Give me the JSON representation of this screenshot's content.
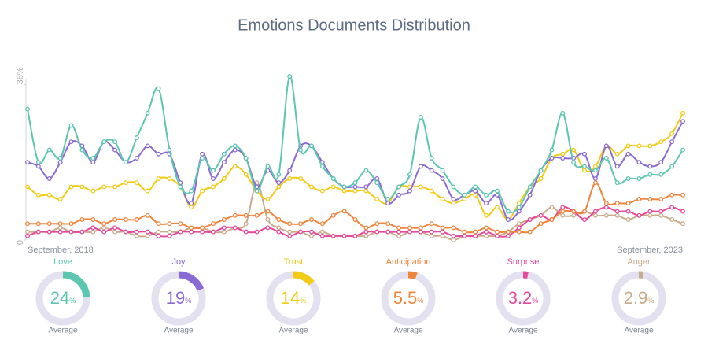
{
  "chart_data": {
    "type": "line",
    "title": "Emotions Documents Distribution",
    "categories": [
      "September, 2018",
      null,
      null,
      null,
      null,
      null,
      null,
      null,
      null,
      null,
      null,
      null,
      null,
      null,
      null,
      null,
      null,
      null,
      null,
      null,
      null,
      null,
      null,
      null,
      null,
      null,
      null,
      null,
      null,
      null,
      null,
      null,
      null,
      null,
      null,
      null,
      null,
      null,
      null,
      null,
      null,
      null,
      null,
      null,
      null,
      null,
      null,
      null,
      null,
      null,
      null,
      null,
      null,
      null,
      null,
      null,
      null,
      null,
      null,
      null,
      "September, 2023"
    ],
    "ylim": [
      0,
      40
    ],
    "yticks": [
      0,
      {
        "value": 38,
        "label": "38%"
      }
    ],
    "series": [
      {
        "name": "Anger",
        "color": "#c9ab8c",
        "values": [
          2,
          2,
          2,
          3,
          2,
          2,
          2,
          3,
          2,
          2,
          1,
          1,
          2,
          2,
          2,
          3,
          3,
          2,
          2,
          3,
          4,
          14,
          5,
          3,
          2,
          2,
          1,
          2,
          1,
          1,
          1,
          1,
          2,
          2,
          1,
          2,
          2,
          1,
          1,
          0,
          1,
          1,
          1,
          1,
          2,
          4,
          5,
          6,
          8,
          6,
          6,
          7,
          6,
          6,
          6,
          5,
          6,
          6,
          6,
          5,
          4
        ]
      },
      {
        "name": "Surprise",
        "color": "#e8489a",
        "values": [
          1,
          2,
          2,
          2,
          2,
          2,
          3,
          2,
          3,
          2,
          2,
          2,
          1,
          1,
          2,
          2,
          2,
          2,
          3,
          3,
          2,
          2,
          3,
          2,
          1,
          2,
          2,
          1,
          1,
          1,
          1,
          2,
          2,
          2,
          2,
          2,
          2,
          2,
          2,
          1,
          1,
          1,
          2,
          1,
          1,
          3,
          5,
          6,
          5,
          8,
          7,
          5,
          7,
          8,
          7,
          7,
          6,
          7,
          7,
          8,
          7
        ]
      },
      {
        "name": "Anticipation",
        "color": "#f0843c",
        "values": [
          4,
          4,
          4,
          4,
          4,
          5,
          5,
          4,
          5,
          5,
          5,
          6,
          4,
          4,
          4,
          3,
          3,
          4,
          5,
          6,
          6,
          6,
          7,
          5,
          4,
          4,
          5,
          4,
          6,
          7,
          5,
          3,
          4,
          4,
          3,
          3,
          3,
          4,
          3,
          3,
          2,
          2,
          3,
          2,
          2,
          2,
          2,
          4,
          5,
          7,
          7,
          7,
          14,
          9,
          9,
          9,
          10,
          10,
          10,
          11,
          11
        ]
      },
      {
        "name": "Trust",
        "color": "#f2cb16",
        "values": [
          13,
          11,
          11,
          10,
          13,
          13,
          12,
          13,
          13,
          14,
          14,
          12,
          15,
          15,
          13,
          8,
          12,
          13,
          15,
          18,
          16,
          12,
          10,
          13,
          15,
          15,
          13,
          12,
          13,
          12,
          12,
          12,
          10,
          9,
          13,
          13,
          13,
          12,
          10,
          9,
          10,
          11,
          6,
          8,
          5,
          9,
          13,
          15,
          20,
          21,
          22,
          17,
          18,
          23,
          21,
          23,
          23,
          23,
          24,
          26,
          31
        ]
      },
      {
        "name": "Joy",
        "color": "#8a6bd4",
        "values": [
          19,
          18,
          15,
          19,
          24,
          23,
          19,
          24,
          22,
          19,
          20,
          23,
          21,
          21,
          14,
          9,
          21,
          15,
          19,
          22,
          20,
          13,
          17,
          14,
          17,
          23,
          23,
          19,
          15,
          13,
          13,
          13,
          15,
          9,
          11,
          12,
          18,
          17,
          15,
          10,
          11,
          12,
          9,
          11,
          5,
          7,
          11,
          17,
          20,
          20,
          20,
          21,
          15,
          23,
          18,
          21,
          19,
          18,
          19,
          24,
          29
        ]
      },
      {
        "name": "Love",
        "color": "#5cc6b1",
        "values": [
          32,
          19,
          22,
          20,
          28,
          22,
          20,
          24,
          24,
          19,
          25,
          31,
          37,
          22,
          13,
          12,
          20,
          17,
          21,
          23,
          20,
          12,
          18,
          16,
          40,
          22,
          23,
          18,
          15,
          13,
          14,
          17,
          14,
          10,
          13,
          16,
          30,
          20,
          17,
          13,
          11,
          13,
          11,
          12,
          7,
          8,
          13,
          17,
          22,
          31,
          19,
          18,
          17,
          20,
          14,
          15,
          15,
          16,
          16,
          18,
          22
        ]
      }
    ],
    "gauges": [
      {
        "name": "Love",
        "value": 24
      },
      {
        "name": "Joy",
        "value": 19
      },
      {
        "name": "Trust",
        "value": 14
      },
      {
        "name": "Anticipation",
        "value": 5.5
      },
      {
        "name": "Surprise",
        "value": 3.2
      },
      {
        "name": "Anger",
        "value": 2.9
      }
    ],
    "gauge_colors": [
      "#5cc6b1",
      "#8a6bd4",
      "#f2cb16",
      "#f0843c",
      "#e8489a",
      "#c9ab8c"
    ],
    "gauge_unit": "%",
    "gauge_caption": "Average"
  }
}
